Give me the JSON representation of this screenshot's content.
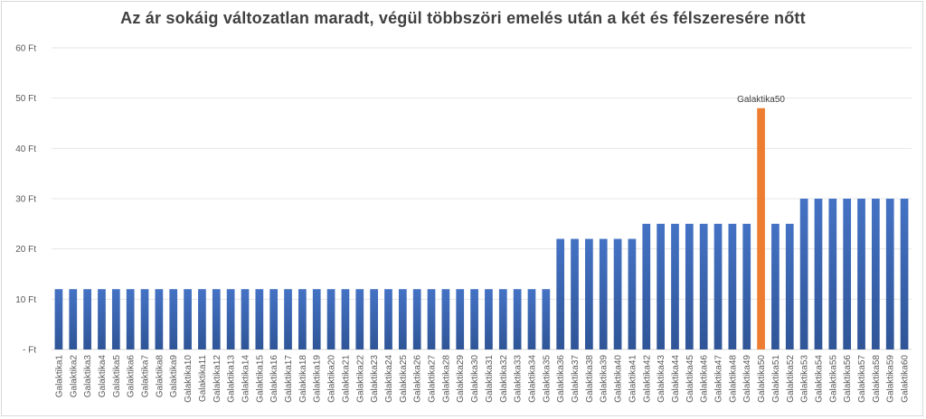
{
  "chart_data": {
    "type": "bar",
    "title": "Az ár sokáig változatlan maradt, végül többszöri emelés után a két és félszeresére nőtt",
    "xlabel": "",
    "ylabel": "",
    "ylim": [
      0,
      60
    ],
    "yticks": [
      "-   Ft",
      "10 Ft",
      "20 Ft",
      "30 Ft",
      "40 Ft",
      "50 Ft",
      "60 Ft"
    ],
    "grid": true,
    "legend": "none",
    "colors": {
      "default": "#4472C4",
      "highlight": "#ED7D31",
      "gradient_end": "#2F5597"
    },
    "highlight_category": "Galaktika50",
    "data_label": "Galaktika50",
    "categories": [
      "Galaktika1",
      "Galaktika2",
      "Galaktika3",
      "Galaktika4",
      "Galaktika5",
      "Galaktika6",
      "Galaktika7",
      "Galaktika8",
      "Galaktika9",
      "Galaktika10",
      "Galaktika11",
      "Galaktika12",
      "Galaktika13",
      "Galaktika14",
      "Galaktika15",
      "Galaktika16",
      "Galaktika17",
      "Galaktika18",
      "Galaktika19",
      "Galaktika20",
      "Galaktika21",
      "Galaktika22",
      "Galaktika23",
      "Galaktika24",
      "Galaktika25",
      "Galaktika26",
      "Galaktika27",
      "Galaktika28",
      "Galaktika29",
      "Galaktika30",
      "Galaktika31",
      "Galaktika32",
      "Galaktika33",
      "Galaktika34",
      "Galaktika35",
      "Galaktika36",
      "Galaktika37",
      "Galaktika38",
      "Galaktika39",
      "Galaktika40",
      "Galaktika41",
      "Galaktika42",
      "Galaktika43",
      "Galaktika44",
      "Galaktika45",
      "Galaktika46",
      "Galaktika47",
      "Galaktika48",
      "Galaktika49",
      "Galaktika50",
      "Galaktika51",
      "Galaktika52",
      "Galaktika53",
      "Galaktika54",
      "Galaktika55",
      "Galaktika56",
      "Galaktika57",
      "Galaktika58",
      "Galaktika59",
      "Galaktika60"
    ],
    "values": [
      12,
      12,
      12,
      12,
      12,
      12,
      12,
      12,
      12,
      12,
      12,
      12,
      12,
      12,
      12,
      12,
      12,
      12,
      12,
      12,
      12,
      12,
      12,
      12,
      12,
      12,
      12,
      12,
      12,
      12,
      12,
      12,
      12,
      12,
      12,
      22,
      22,
      22,
      22,
      22,
      22,
      25,
      25,
      25,
      25,
      25,
      25,
      25,
      25,
      48,
      25,
      25,
      30,
      30,
      30,
      30,
      30,
      30,
      30,
      30
    ]
  }
}
